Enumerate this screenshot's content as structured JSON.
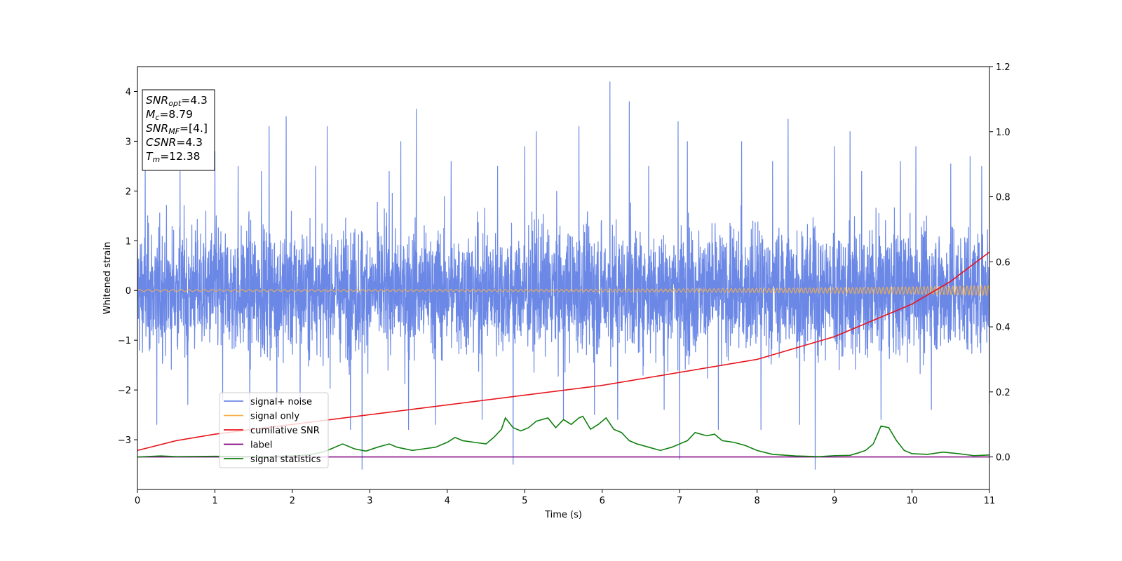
{
  "chart_data": {
    "type": "line",
    "xlabel": "Time (s)",
    "ylabel": "Whitened strain",
    "xlim": [
      0,
      11
    ],
    "ylim_left": [
      -4,
      4.5
    ],
    "ylim_right": [
      -0.1,
      1.2
    ],
    "x_ticks": [
      0,
      1,
      2,
      3,
      4,
      5,
      6,
      7,
      8,
      9,
      10,
      11
    ],
    "y_ticks_left": [
      -3,
      -2,
      -1,
      0,
      1,
      2,
      3,
      4
    ],
    "y_ticks_right": [
      0.0,
      0.2,
      0.4,
      0.6,
      0.8,
      1.0,
      1.2
    ],
    "legend_position": "lower-left",
    "series": [
      {
        "name": "signal+ noise",
        "axis": "left",
        "color": "#6b88e6",
        "kind": "noise",
        "typical_range": [
          -1.6,
          1.6
        ],
        "spikes": [
          [
            0.1,
            2.6
          ],
          [
            0.25,
            -2.7
          ],
          [
            0.55,
            2.4
          ],
          [
            0.65,
            -2.3
          ],
          [
            1.0,
            2.8
          ],
          [
            1.1,
            -2.2
          ],
          [
            1.3,
            2.5
          ],
          [
            1.45,
            -2.9
          ],
          [
            1.6,
            2.4
          ],
          [
            1.7,
            3.3
          ],
          [
            1.8,
            -2.3
          ],
          [
            1.92,
            3.5
          ],
          [
            2.1,
            -2.4
          ],
          [
            2.3,
            2.5
          ],
          [
            2.45,
            3.3
          ],
          [
            2.75,
            -2.8
          ],
          [
            2.9,
            -3.6
          ],
          [
            3.25,
            2.4
          ],
          [
            3.4,
            3.0
          ],
          [
            3.5,
            -2.8
          ],
          [
            3.6,
            3.65
          ],
          [
            3.85,
            -2.7
          ],
          [
            4.05,
            2.6
          ],
          [
            4.45,
            -2.6
          ],
          [
            4.65,
            2.5
          ],
          [
            4.85,
            -3.5
          ],
          [
            5.0,
            2.9
          ],
          [
            5.15,
            3.2
          ],
          [
            5.5,
            -2.6
          ],
          [
            5.7,
            3.3
          ],
          [
            5.9,
            -2.5
          ],
          [
            6.1,
            4.2
          ],
          [
            6.2,
            -2.6
          ],
          [
            6.35,
            3.8
          ],
          [
            6.6,
            2.5
          ],
          [
            6.8,
            -2.4
          ],
          [
            6.98,
            3.4
          ],
          [
            7.0,
            -3.4
          ],
          [
            7.1,
            3.0
          ],
          [
            7.5,
            -2.8
          ],
          [
            7.8,
            3.0
          ],
          [
            8.05,
            -2.8
          ],
          [
            8.2,
            2.6
          ],
          [
            8.4,
            3.45
          ],
          [
            8.55,
            -2.7
          ],
          [
            8.75,
            -3.6
          ],
          [
            9.0,
            2.9
          ],
          [
            9.2,
            3.2
          ],
          [
            9.35,
            2.4
          ],
          [
            9.6,
            -2.6
          ],
          [
            9.85,
            2.6
          ],
          [
            10.05,
            2.9
          ],
          [
            10.25,
            -2.4
          ],
          [
            10.5,
            2.55
          ],
          [
            10.75,
            2.7
          ],
          [
            10.9,
            2.5
          ],
          [
            11.0,
            -2.3
          ]
        ]
      },
      {
        "name": "signal only",
        "axis": "left",
        "color": "#f5b04d",
        "kind": "chirp",
        "amplitude_start": 0.02,
        "amplitude_end": 0.1
      },
      {
        "name": "cumilative SNR",
        "axis": "right",
        "color": "#e8141b",
        "kind": "curve",
        "x": [
          0,
          0.5,
          1,
          2,
          3,
          4,
          5,
          6,
          7,
          8,
          9,
          10,
          10.5,
          11
        ],
        "y": [
          0.02,
          0.05,
          0.07,
          0.1,
          0.13,
          0.16,
          0.19,
          0.22,
          0.26,
          0.3,
          0.37,
          0.47,
          0.54,
          0.63
        ]
      },
      {
        "name": "label",
        "axis": "right",
        "color": "#800080",
        "kind": "curve",
        "x": [
          0,
          11
        ],
        "y": [
          0.0,
          0.0
        ]
      },
      {
        "name": "signal statistics",
        "axis": "right",
        "color": "#108010",
        "kind": "curve",
        "x": [
          0,
          0.3,
          0.5,
          1.0,
          1.5,
          1.8,
          2.0,
          2.2,
          2.4,
          2.55,
          2.65,
          2.8,
          2.95,
          3.1,
          3.25,
          3.35,
          3.55,
          3.7,
          3.85,
          4.0,
          4.1,
          4.2,
          4.35,
          4.5,
          4.6,
          4.7,
          4.75,
          4.85,
          4.95,
          5.05,
          5.15,
          5.3,
          5.4,
          5.5,
          5.6,
          5.7,
          5.75,
          5.85,
          5.95,
          6.05,
          6.15,
          6.25,
          6.35,
          6.45,
          6.6,
          6.75,
          6.9,
          7.0,
          7.1,
          7.2,
          7.35,
          7.45,
          7.55,
          7.7,
          7.85,
          8.0,
          8.2,
          8.5,
          8.8,
          9.0,
          9.2,
          9.3,
          9.4,
          9.5,
          9.6,
          9.7,
          9.8,
          9.9,
          10.0,
          10.2,
          10.4,
          10.6,
          10.8,
          11.0
        ],
        "y": [
          0.0,
          0.003,
          0.001,
          0.002,
          0.001,
          0.002,
          0.003,
          0.006,
          0.015,
          0.03,
          0.04,
          0.025,
          0.018,
          0.03,
          0.04,
          0.03,
          0.02,
          0.025,
          0.03,
          0.045,
          0.06,
          0.05,
          0.045,
          0.04,
          0.06,
          0.085,
          0.12,
          0.09,
          0.08,
          0.09,
          0.11,
          0.12,
          0.09,
          0.115,
          0.1,
          0.12,
          0.125,
          0.085,
          0.1,
          0.12,
          0.085,
          0.075,
          0.05,
          0.04,
          0.03,
          0.02,
          0.03,
          0.04,
          0.05,
          0.075,
          0.065,
          0.07,
          0.05,
          0.045,
          0.035,
          0.02,
          0.008,
          0.003,
          0.001,
          0.004,
          0.005,
          0.012,
          0.02,
          0.04,
          0.095,
          0.09,
          0.05,
          0.02,
          0.01,
          0.008,
          0.015,
          0.01,
          0.004,
          0.006
        ]
      }
    ],
    "annotation": {
      "lines": [
        {
          "main": "SNR",
          "sub": "opt",
          "value": "=4.3"
        },
        {
          "main": "M",
          "sub": "c",
          "value": "=8.79"
        },
        {
          "main": "SNR",
          "sub": "MF",
          "value": "=[4.]"
        },
        {
          "main": "CSNR",
          "sub": "",
          "value": "=4.3"
        },
        {
          "main": "T",
          "sub": "m",
          "value": "=12.38"
        }
      ]
    }
  }
}
